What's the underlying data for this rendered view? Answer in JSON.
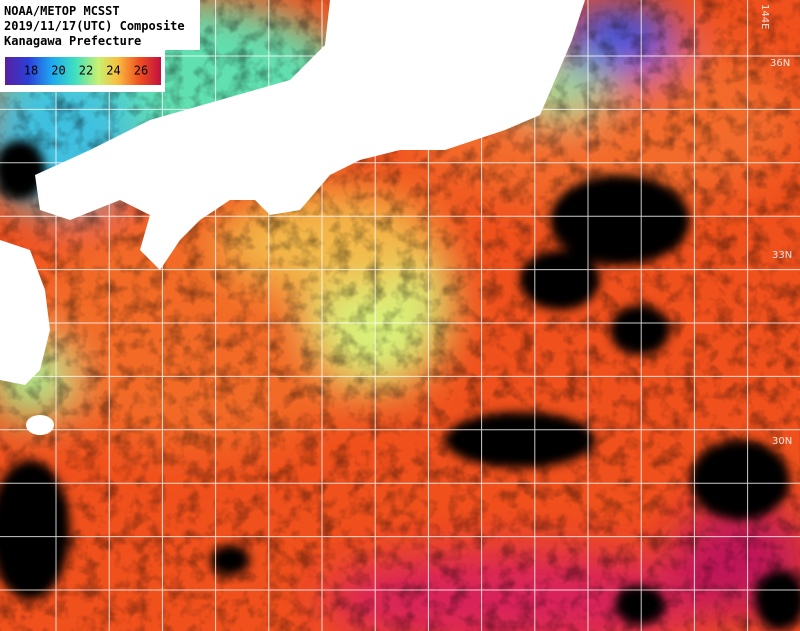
{
  "header": {
    "lines": [
      "NOAA/METOP MCSST",
      "2019/11/17(UTC) Composite",
      "Kanagawa Prefecture"
    ]
  },
  "legend": {
    "labels": [
      18,
      20,
      22,
      24,
      26
    ]
  },
  "grid_labels": {
    "lat": [
      "36N",
      "33N",
      "30N"
    ],
    "lon": [
      "144E"
    ]
  }
}
